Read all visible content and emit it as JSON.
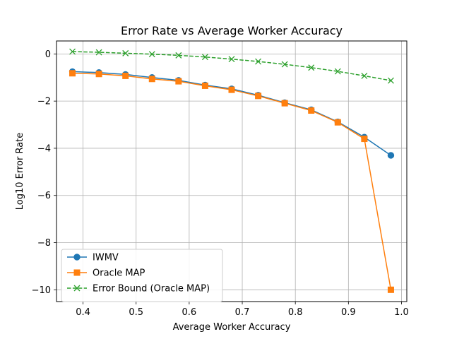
{
  "chart_data": {
    "type": "line",
    "title": "Error Rate vs Average Worker Accuracy",
    "xlabel": "Average Worker Accuracy",
    "ylabel": "Log10 Error Rate",
    "xlim": [
      0.35,
      1.01
    ],
    "ylim": [
      -10.5,
      0.55
    ],
    "xticks": [
      0.4,
      0.5,
      0.6,
      0.7,
      0.8,
      0.9,
      1.0
    ],
    "xtick_labels": [
      "0.4",
      "0.5",
      "0.6",
      "0.7",
      "0.8",
      "0.9",
      "1.0"
    ],
    "yticks": [
      0,
      -2,
      -4,
      -6,
      -8,
      -10
    ],
    "ytick_labels": [
      "0",
      "−2",
      "−4",
      "−6",
      "−8",
      "−10"
    ],
    "grid": true,
    "legend_position": "lower-left",
    "x": [
      0.38,
      0.43,
      0.48,
      0.53,
      0.58,
      0.63,
      0.68,
      0.73,
      0.78,
      0.83,
      0.88,
      0.93,
      0.98
    ],
    "series": [
      {
        "name": "IWMV",
        "color": "#1f77b4",
        "marker": "circle",
        "linestyle": "solid",
        "values": [
          -0.75,
          -0.79,
          -0.87,
          -1.0,
          -1.12,
          -1.32,
          -1.48,
          -1.75,
          -2.07,
          -2.37,
          -2.88,
          -3.53,
          -4.3
        ]
      },
      {
        "name": "Oracle MAP",
        "color": "#ff7f0e",
        "marker": "square",
        "linestyle": "solid",
        "values": [
          -0.82,
          -0.85,
          -0.93,
          -1.06,
          -1.16,
          -1.35,
          -1.52,
          -1.78,
          -2.09,
          -2.4,
          -2.9,
          -3.6,
          -10.0
        ]
      },
      {
        "name": "Error Bound (Oracle MAP)",
        "color": "#2ca02c",
        "marker": "x",
        "linestyle": "dashed",
        "values": [
          0.1,
          0.07,
          0.03,
          -0.01,
          -0.06,
          -0.13,
          -0.22,
          -0.32,
          -0.44,
          -0.58,
          -0.74,
          -0.93,
          -1.13
        ]
      }
    ]
  }
}
